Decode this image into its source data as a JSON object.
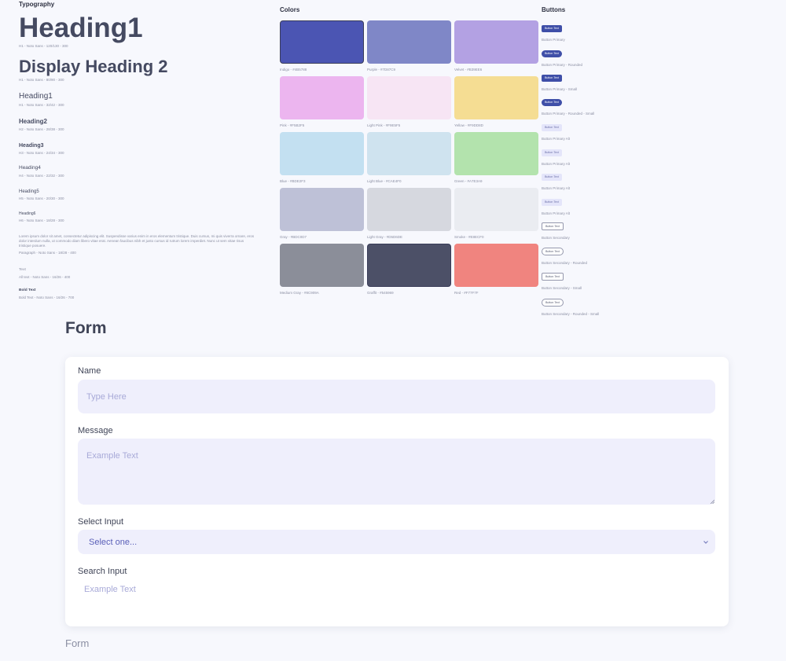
{
  "typography": {
    "title": "Typography",
    "display_heading_1": {
      "text": "Heading1",
      "caption": "H1 - Noto Sans - 120/130 - 300"
    },
    "display_heading_2": {
      "text": "Display Heading 2",
      "caption": "H1 - Noto Sans - 80/90 - 300"
    },
    "heading1": {
      "text": "Heading1",
      "caption": "H1 - Noto Sans - 32/42 - 300"
    },
    "heading2": {
      "text": "Heading2",
      "caption": "H2 - Noto Sans - 28/38 - 300"
    },
    "heading3": {
      "text": "Heading3",
      "caption": "H3 - Noto Sans - 24/34 - 300"
    },
    "heading4": {
      "text": "Heading4",
      "caption": "H4 - Noto Sans - 22/32 - 300"
    },
    "heading5": {
      "text": "Heading5",
      "caption": "H5 - Noto Sans - 20/30 - 300"
    },
    "heading6": {
      "text": "Heading6",
      "caption": "H6 - Noto Sans - 18/28 - 300"
    },
    "paragraph": {
      "text": "Lorem ipsum dolor sit amet, consectetur adipiscing elit. Suspendisse varius enim in eros elementum tristique. Duis cursus, mi quis viverra ornare, eros dolor interdum nulla, ut commodo diam libero vitae erat. Aenean faucibus nibh et justo cursus id rutrum lorem imperdiet. Nunc ut sem vitae risus tristique posuere.",
      "caption": "Paragraph - Noto Sans - 18/28 - 400"
    },
    "text": {
      "text": "Text",
      "caption": "All text - Noto Sans - 16/26 - 400"
    },
    "bold_text": {
      "text": "Bold Text",
      "caption": "Bold Text - Noto Sans - 16/26 - 700"
    }
  },
  "colors": {
    "title": "Colors",
    "swatches": [
      {
        "label": "Indigo - #4B5788",
        "hex": "#4b55b3",
        "edge": true
      },
      {
        "label": "Purple - #7D87C9",
        "hex": "#7f87c7",
        "edge": false
      },
      {
        "label": "Velvet - #B39EE6",
        "hex": "#b3a1e3",
        "edge": false
      },
      {
        "label": "Pink - #F5B2F5",
        "hex": "#ecb5ef",
        "edge": false
      },
      {
        "label": "Light Pink - #F9E5F5",
        "hex": "#f7e5f4",
        "edge": false
      },
      {
        "label": "Yellow - #F9DD8D",
        "hex": "#f5dd93",
        "edge": false
      },
      {
        "label": "Blue - #BDE2F3",
        "hex": "#c3e0f1",
        "edge": false
      },
      {
        "label": "Light Blue - #CAE4F0",
        "hex": "#cfe3ef",
        "edge": false
      },
      {
        "label": "Green - #A7E3A9",
        "hex": "#b3e3ad",
        "edge": false
      },
      {
        "label": "Gray - #BDC0D7",
        "hex": "#bec1d7",
        "edge": false
      },
      {
        "label": "Light Gray - #D5D6DE",
        "hex": "#d6d8df",
        "edge": false
      },
      {
        "label": "Smoke - #E8ECF0",
        "hex": "#eaecf1",
        "edge": false
      },
      {
        "label": "Medium Gray - #8C909A",
        "hex": "#8b8e99",
        "edge": false
      },
      {
        "label": "Graffit - #545969",
        "hex": "#4c5067",
        "edge": true
      },
      {
        "label": "Red - #F77F7F",
        "hex": "#f0847f",
        "edge": false
      }
    ]
  },
  "buttons": {
    "title": "Buttons",
    "items": [
      {
        "label": "Button Text",
        "caption": "Button Primary",
        "style": "primary"
      },
      {
        "label": "Button Text",
        "caption": "Button Primary - Rounded",
        "style": "primary rounded"
      },
      {
        "label": "Button Text",
        "caption": "Button Primary - Small",
        "style": "primary"
      },
      {
        "label": "Button Text",
        "caption": "Button Primary - Rounded - Small",
        "style": "primary rounded"
      },
      {
        "label": "Button Text",
        "caption": "Button Primary Alt",
        "style": "alt"
      },
      {
        "label": "Button Text",
        "caption": "Button Primary Alt",
        "style": "alt"
      },
      {
        "label": "Button Text",
        "caption": "Button Primary Alt",
        "style": "alt"
      },
      {
        "label": "Button Text",
        "caption": "Button Primary Alt",
        "style": "alt"
      },
      {
        "label": "Button Text",
        "caption": "Button Secondary",
        "style": "secondary"
      },
      {
        "label": "Button Text",
        "caption": "Button Secondary - Rounded",
        "style": "secondary rounded"
      },
      {
        "label": "Button Text",
        "caption": "Button Secondary - Small",
        "style": "secondary"
      },
      {
        "label": "Button Text",
        "caption": "Button Secondary - Rounded - Small",
        "style": "secondary rounded"
      }
    ]
  },
  "form": {
    "heading": "Form",
    "name": {
      "label": "Name",
      "placeholder": "Type Here"
    },
    "message": {
      "label": "Message",
      "placeholder": "Example Text"
    },
    "select": {
      "label": "Select Input",
      "value": "Select one..."
    },
    "search": {
      "label": "Search Input",
      "placeholder": "Example Text"
    },
    "footer": "Form"
  }
}
